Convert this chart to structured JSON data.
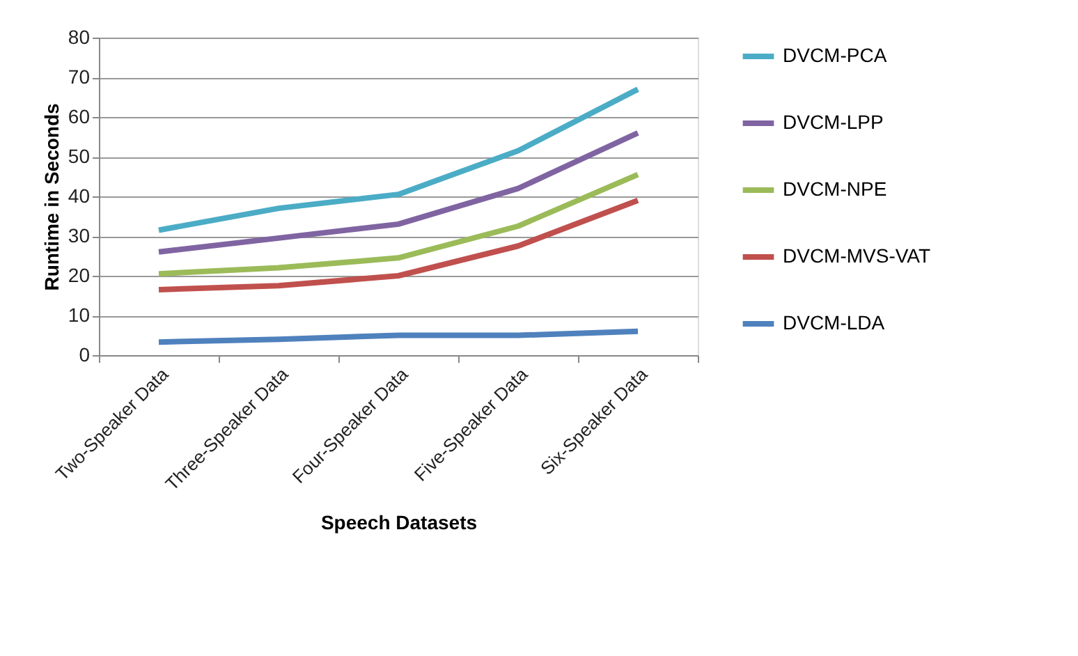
{
  "chart_data": {
    "type": "line",
    "xlabel": "Speech Datasets",
    "ylabel": "Runtime in Seconds",
    "categories": [
      "Two-Speaker Data",
      "Three-Speaker Data",
      "Four-Speaker Data",
      "Five-Speaker Data",
      "Six-Speaker Data"
    ],
    "series": [
      {
        "name": "DVCM-PCA",
        "color": "#4bacc6",
        "values": [
          31.5,
          37,
          40.5,
          51.5,
          67
        ]
      },
      {
        "name": "DVCM-LPP",
        "color": "#8064a2",
        "values": [
          26,
          29.5,
          33,
          42,
          56
        ]
      },
      {
        "name": "DVCM-NPE",
        "color": "#9bbb59",
        "values": [
          20.5,
          22,
          24.5,
          32.5,
          45.5
        ]
      },
      {
        "name": "DVCM-MVS-VAT",
        "color": "#c0504d",
        "values": [
          16.5,
          17.5,
          20,
          27.5,
          39
        ]
      },
      {
        "name": "DVCM-LDA",
        "color": "#4f81bd",
        "values": [
          3.3,
          4,
          5,
          5,
          6
        ]
      }
    ],
    "ylim": [
      0,
      80
    ],
    "yticks": [
      0,
      10,
      20,
      30,
      40,
      50,
      60,
      70,
      80
    ],
    "grid": "y",
    "legend": "right",
    "marker": "none",
    "line_style": "solid"
  }
}
